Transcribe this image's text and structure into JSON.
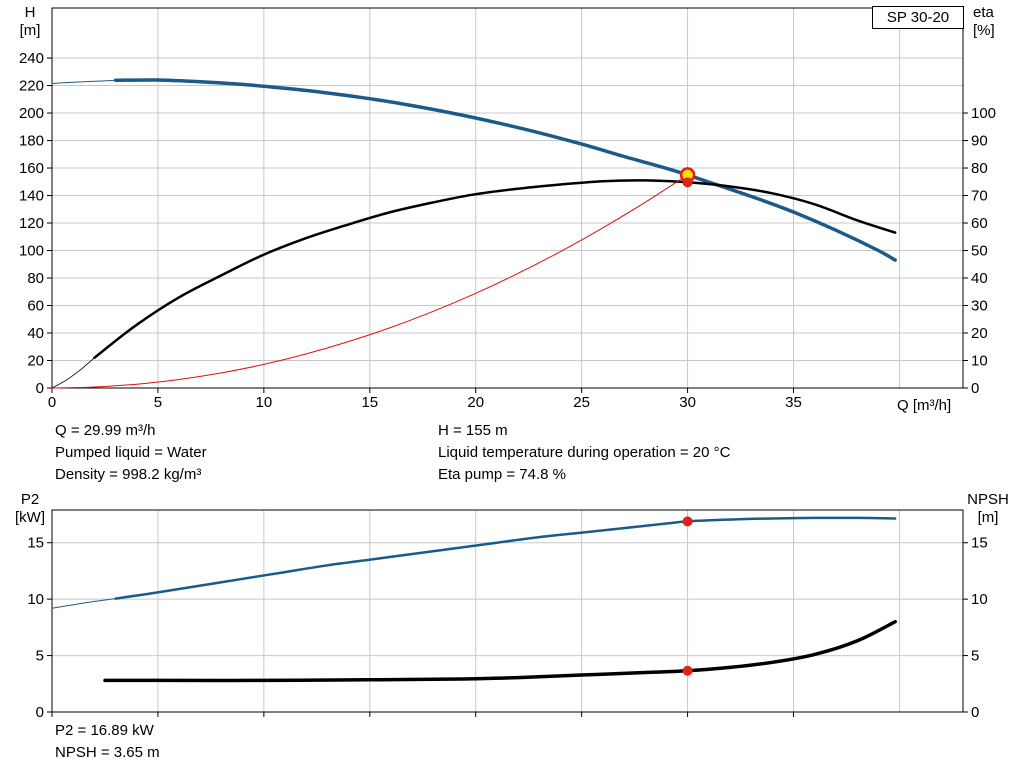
{
  "pump": {
    "model": "SP 30-20"
  },
  "colors": {
    "curve_blue": "#1c5a8a",
    "curve_red": "#dd1111",
    "marker_red": "#e32119",
    "marker_yellow": "#ffdf00",
    "grid": "#c8c8c8",
    "axis": "#000000"
  },
  "annotations": {
    "q": "Q = 29.99 m³/h",
    "h": "H = 155 m",
    "pumped_liquid": "Pumped liquid = Water",
    "liquid_temperature": "Liquid temperature during operation = 20 °C",
    "density": "Density = 998.2 kg/m³",
    "eta_pump": "Eta pump = 74.8 %",
    "p2": "P2 = 16.89 kW",
    "npsh": "NPSH = 3.65 m"
  },
  "chart_data": [
    {
      "type": "line",
      "title": "SP 30-20",
      "x": {
        "label": "Q [m³/h]",
        "min": 0,
        "max": 43,
        "ticks": [
          0,
          5,
          10,
          15,
          20,
          25,
          30,
          35
        ],
        "extra_grid": [
          40
        ],
        "show_labels": true
      },
      "y_left": {
        "label": "H\n[m]",
        "min": 0,
        "max": 276.4,
        "ticks": [
          0,
          20,
          40,
          60,
          80,
          100,
          120,
          140,
          160,
          180,
          200,
          220,
          240
        ]
      },
      "y_right": {
        "label": "eta\n[%]",
        "min": 0,
        "max": 138.2,
        "ticks": [
          0,
          10,
          20,
          30,
          40,
          50,
          60,
          70,
          80,
          90,
          100
        ]
      },
      "grid": true,
      "series": [
        {
          "name": "hq-curve-leadin",
          "axis": "left",
          "color": "#1c5a8a",
          "width": 1,
          "points": [
            [
              0,
              221.5
            ],
            [
              1,
              222.4
            ],
            [
              2,
              223.1
            ],
            [
              3,
              223.8
            ]
          ]
        },
        {
          "name": "hq-curve",
          "axis": "left",
          "color": "#1c5a8a",
          "width": 3.5,
          "points": [
            [
              3,
              223.8
            ],
            [
              5,
              224
            ],
            [
              7,
              222.8
            ],
            [
              9,
              220.8
            ],
            [
              11,
              218
            ],
            [
              13,
              214.6
            ],
            [
              15,
              210.4
            ],
            [
              17,
              205.4
            ],
            [
              19,
              199.6
            ],
            [
              21,
              193
            ],
            [
              23,
              185.6
            ],
            [
              25,
              177.4
            ],
            [
              27,
              168.4
            ],
            [
              29,
              159.8
            ],
            [
              30,
              155
            ],
            [
              31,
              149.8
            ],
            [
              33,
              139.4
            ],
            [
              35,
              128
            ],
            [
              37,
              114.8
            ],
            [
              39,
              100
            ],
            [
              39.8,
              93
            ]
          ]
        },
        {
          "name": "eta-curve-leadin",
          "axis": "right",
          "color": "#000000",
          "width": 0.8,
          "points": [
            [
              0,
              0
            ],
            [
              0.7,
              3
            ],
            [
              1.4,
              7
            ],
            [
              2,
              11
            ]
          ]
        },
        {
          "name": "eta-curve",
          "axis": "right",
          "color": "#000000",
          "width": 2.5,
          "points": [
            [
              2,
              11
            ],
            [
              4,
              23
            ],
            [
              6,
              33
            ],
            [
              8,
              41
            ],
            [
              10,
              48.5
            ],
            [
              12,
              54.5
            ],
            [
              14,
              59.5
            ],
            [
              16,
              64
            ],
            [
              18,
              67.5
            ],
            [
              20,
              70.5
            ],
            [
              22,
              72.5
            ],
            [
              24,
              74
            ],
            [
              26,
              75.2
            ],
            [
              28,
              75.5
            ],
            [
              30,
              74.8
            ],
            [
              32,
              73.3
            ],
            [
              34,
              70.8
            ],
            [
              36,
              66.8
            ],
            [
              38,
              61
            ],
            [
              39.8,
              56.5
            ]
          ]
        },
        {
          "name": "system-curve",
          "axis": "left",
          "color": "#dd1111",
          "width": 1,
          "points": [
            [
              0,
              0
            ],
            [
              2,
              0.7
            ],
            [
              4,
              2.8
            ],
            [
              6,
              6.2
            ],
            [
              8,
              11
            ],
            [
              10,
              17.2
            ],
            [
              12,
              24.8
            ],
            [
              14,
              33.8
            ],
            [
              16,
              44.1
            ],
            [
              18,
              55.8
            ],
            [
              20,
              68.9
            ],
            [
              22,
              83.4
            ],
            [
              24,
              99.2
            ],
            [
              26,
              116.5
            ],
            [
              28,
              135.1
            ],
            [
              30,
              155
            ]
          ]
        }
      ],
      "markers": [
        {
          "name": "duty-point-h",
          "x": 30,
          "y": 155,
          "axis": "left",
          "r": 6.5,
          "fill": "#ffdf00",
          "stroke": "#e32119",
          "stroke_width": 2.5
        },
        {
          "name": "duty-point-eta",
          "x": 30,
          "y": 74.8,
          "axis": "right",
          "r": 5,
          "fill": "#e32119"
        }
      ]
    },
    {
      "type": "line",
      "title": "",
      "x": {
        "label": "",
        "min": 0,
        "max": 43,
        "ticks": [
          0,
          5,
          10,
          15,
          20,
          25,
          30,
          35
        ],
        "extra_grid": [
          40
        ],
        "show_labels": false
      },
      "y_left": {
        "label": "P2\n[kW]",
        "min": 0,
        "max": 17.9,
        "ticks": [
          0,
          5,
          10,
          15
        ]
      },
      "y_right": {
        "label": "NPSH\n[m]",
        "min": 0,
        "max": 17.9,
        "ticks": [
          0,
          5,
          10,
          15
        ]
      },
      "grid": true,
      "series": [
        {
          "name": "p2-curve-leadin",
          "axis": "left",
          "color": "#1c5a8a",
          "width": 1,
          "points": [
            [
              0,
              9.2
            ],
            [
              1,
              9.5
            ],
            [
              2,
              9.8
            ],
            [
              3,
              10.05
            ]
          ]
        },
        {
          "name": "p2-curve",
          "axis": "left",
          "color": "#1c5a8a",
          "width": 2.5,
          "points": [
            [
              3,
              10.05
            ],
            [
              5,
              10.6
            ],
            [
              7,
              11.2
            ],
            [
              9,
              11.8
            ],
            [
              11,
              12.4
            ],
            [
              13,
              13.0
            ],
            [
              15,
              13.5
            ],
            [
              17,
              14.0
            ],
            [
              19,
              14.5
            ],
            [
              21,
              15.0
            ],
            [
              23,
              15.5
            ],
            [
              25,
              15.9
            ],
            [
              27,
              16.3
            ],
            [
              29,
              16.7
            ],
            [
              30,
              16.89
            ],
            [
              32,
              17.05
            ],
            [
              34,
              17.15
            ],
            [
              36,
              17.2
            ],
            [
              38,
              17.2
            ],
            [
              39.8,
              17.15
            ]
          ]
        },
        {
          "name": "npsh-curve",
          "axis": "right",
          "color": "#000000",
          "width": 3.5,
          "points": [
            [
              2.5,
              2.8
            ],
            [
              5,
              2.8
            ],
            [
              10,
              2.8
            ],
            [
              15,
              2.85
            ],
            [
              18,
              2.9
            ],
            [
              20,
              2.95
            ],
            [
              22,
              3.05
            ],
            [
              24,
              3.2
            ],
            [
              26,
              3.35
            ],
            [
              28,
              3.5
            ],
            [
              30,
              3.65
            ],
            [
              32,
              3.95
            ],
            [
              34,
              4.4
            ],
            [
              36,
              5.1
            ],
            [
              38,
              6.3
            ],
            [
              39.8,
              8.0
            ]
          ]
        }
      ],
      "markers": [
        {
          "name": "duty-point-p2",
          "x": 30,
          "y": 16.89,
          "axis": "left",
          "r": 5,
          "fill": "#e32119"
        },
        {
          "name": "duty-point-npsh",
          "x": 30,
          "y": 3.65,
          "axis": "right",
          "r": 5,
          "fill": "#e32119"
        }
      ]
    }
  ]
}
